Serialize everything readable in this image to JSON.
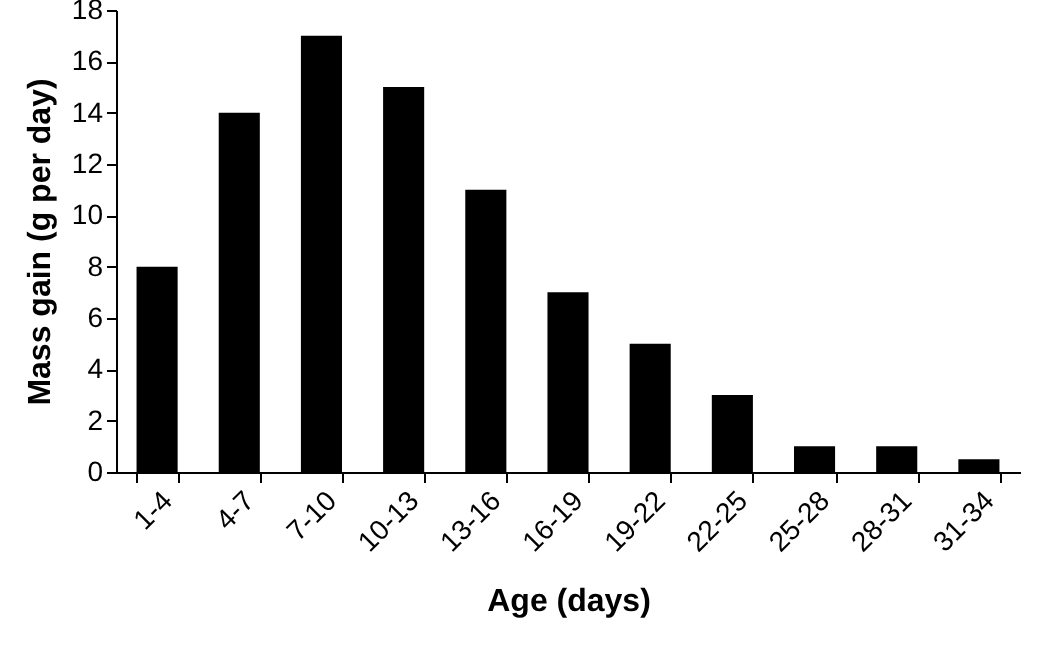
{
  "chart_data": {
    "type": "bar",
    "xlabel": "Age (days)",
    "ylabel": "Mass gain (g per day)",
    "categories": [
      "1-4",
      "4-7",
      "7-10",
      "10-13",
      "13-16",
      "16-19",
      "19-22",
      "22-25",
      "25-28",
      "28-31",
      "31-34"
    ],
    "values": [
      8,
      14,
      17,
      15,
      11,
      7,
      5,
      3,
      1,
      1,
      0.5
    ],
    "color": "#000000",
    "ylim": [
      0,
      18
    ],
    "yticks": [
      0,
      2,
      4,
      6,
      8,
      10,
      12,
      14,
      16,
      18
    ],
    "grid": false
  }
}
